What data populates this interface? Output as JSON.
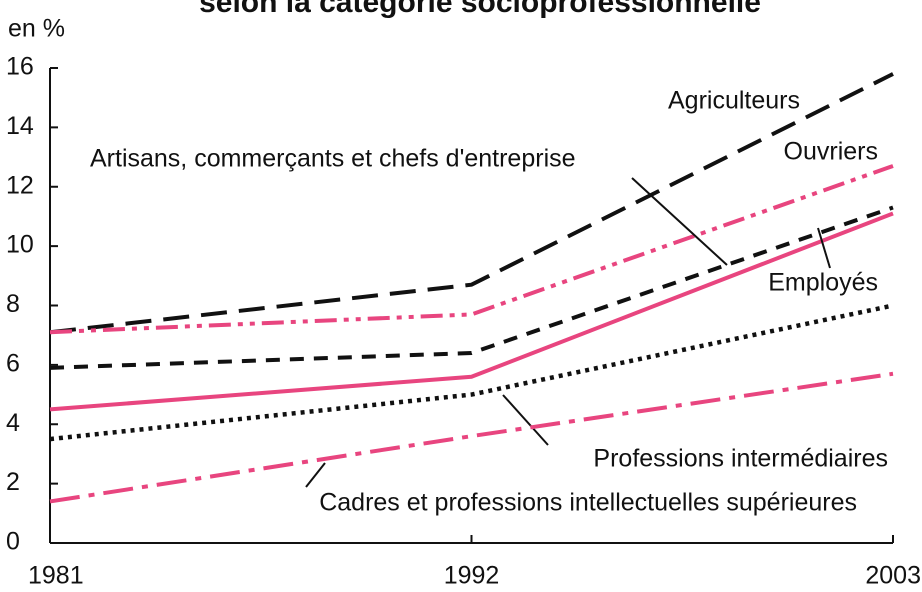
{
  "chart_data": {
    "type": "line",
    "title": "selon la catégorie socioprofessionnelle",
    "y_label": "en %",
    "x": [
      1981,
      1992,
      2003
    ],
    "xlim": [
      1981,
      2003
    ],
    "xticks": [
      1981,
      1992,
      2003
    ],
    "ylim": [
      0,
      16
    ],
    "yticks": [
      0,
      2,
      4,
      6,
      8,
      10,
      12,
      14,
      16
    ],
    "series": [
      {
        "name": "Agriculteurs",
        "color": "#111111",
        "style": "long-dash",
        "values": [
          7.1,
          8.7,
          15.8
        ]
      },
      {
        "name": "Ouvriers",
        "color": "#e8457f",
        "style": "dash-dot-dot",
        "values": [
          7.1,
          7.7,
          12.7
        ]
      },
      {
        "name": "Artisans, commerçants et chefs d'entreprise",
        "color": "#111111",
        "style": "dash",
        "values": [
          5.9,
          6.4,
          11.3
        ]
      },
      {
        "name": "Employés",
        "color": "#e8457f",
        "style": "solid",
        "values": [
          4.5,
          5.6,
          11.1
        ]
      },
      {
        "name": "Professions intermédiaires",
        "color": "#111111",
        "style": "dot",
        "values": [
          3.5,
          5.0,
          8.0
        ]
      },
      {
        "name": "Cadres et professions intellectuelles supérieures",
        "color": "#e8457f",
        "style": "long-dash-dot",
        "values": [
          1.4,
          3.6,
          5.7
        ]
      }
    ]
  }
}
